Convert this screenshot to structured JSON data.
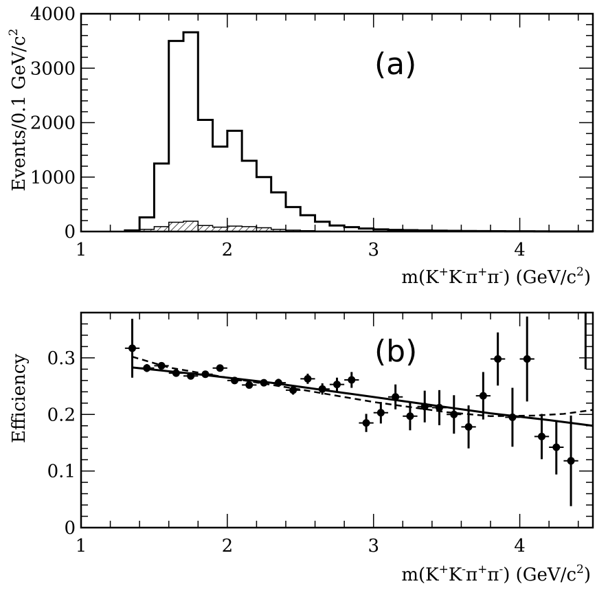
{
  "chart_data": [
    {
      "type": "bar",
      "subtype": "step-histogram",
      "panel_label": "(a)",
      "xlabel_parts": [
        "m(K",
        "+",
        "K",
        "-",
        "π",
        "+",
        "π",
        "-",
        ") (GeV/c",
        "2",
        ")"
      ],
      "ylabel_parts": [
        "Events/0.1 GeV/c",
        "2"
      ],
      "xlim": [
        1,
        4.5
      ],
      "ylim": [
        0,
        4000
      ],
      "xticks": [
        "1",
        "2",
        "3",
        "4"
      ],
      "yticks": [
        "0",
        "1000",
        "2000",
        "3000",
        "4000"
      ],
      "grid": false,
      "bin_width": 0.1,
      "series": [
        {
          "style": "solid-step",
          "x_left": [
            1.3,
            1.4,
            1.5,
            1.6,
            1.7,
            1.8,
            1.9,
            2.0,
            2.1,
            2.2,
            2.3,
            2.4,
            2.5,
            2.6,
            2.7,
            2.8,
            2.9,
            3.0,
            3.1,
            3.2,
            3.3,
            3.4,
            3.5,
            3.6,
            3.7,
            3.8,
            3.9,
            4.0,
            4.1,
            4.2,
            4.3,
            4.4
          ],
          "values": [
            20,
            260,
            1250,
            3500,
            3660,
            2050,
            1560,
            1850,
            1300,
            1000,
            720,
            450,
            300,
            180,
            110,
            80,
            55,
            40,
            30,
            25,
            20,
            15,
            12,
            10,
            8,
            6,
            5,
            4,
            3,
            2,
            2,
            1
          ]
        },
        {
          "style": "hatched",
          "x_left": [
            1.3,
            1.4,
            1.5,
            1.6,
            1.7,
            1.8,
            1.9,
            2.0,
            2.1,
            2.2,
            2.3,
            2.4,
            2.5,
            2.6,
            2.7
          ],
          "values": [
            5,
            40,
            90,
            170,
            190,
            110,
            80,
            100,
            90,
            70,
            40,
            25,
            15,
            8,
            4
          ]
        }
      ]
    },
    {
      "type": "scatter",
      "subtype": "points-with-error-bars",
      "panel_label": "(b)",
      "xlabel_parts": [
        "m(K",
        "+",
        "K",
        "-",
        "π",
        "+",
        "π",
        "-",
        ") (GeV/c",
        "2",
        ")"
      ],
      "ylabel": "Efficiency",
      "xlim": [
        1,
        4.5
      ],
      "ylim": [
        0,
        0.38
      ],
      "xticks": [
        "1",
        "2",
        "3",
        "4"
      ],
      "yticks": [
        "0",
        "0.1",
        "0.2",
        "0.3"
      ],
      "grid": false,
      "points": {
        "x": [
          1.35,
          1.45,
          1.55,
          1.65,
          1.75,
          1.85,
          1.95,
          2.05,
          2.15,
          2.25,
          2.35,
          2.45,
          2.55,
          2.65,
          2.75,
          2.85,
          2.95,
          3.05,
          3.15,
          3.25,
          3.35,
          3.45,
          3.55,
          3.65,
          3.75,
          3.85,
          3.95,
          4.05,
          4.15,
          4.25,
          4.35
        ],
        "y": [
          0.317,
          0.282,
          0.286,
          0.273,
          0.268,
          0.271,
          0.282,
          0.26,
          0.252,
          0.256,
          0.256,
          0.243,
          0.263,
          0.245,
          0.253,
          0.261,
          0.185,
          0.203,
          0.231,
          0.197,
          0.214,
          0.212,
          0.2,
          0.178,
          0.233,
          0.298,
          0.195,
          0.298,
          0.161,
          0.142,
          0.118
        ],
        "yerr": [
          0.052,
          0.007,
          0.005,
          0.004,
          0.004,
          0.004,
          0.005,
          0.005,
          0.006,
          0.006,
          0.007,
          0.008,
          0.009,
          0.01,
          0.012,
          0.014,
          0.016,
          0.019,
          0.022,
          0.025,
          0.028,
          0.031,
          0.034,
          0.038,
          0.042,
          0.047,
          0.052,
          0.075,
          0.04,
          0.048,
          0.08
        ]
      },
      "solid_curve": {
        "x": [
          1.35,
          1.8,
          2.3,
          2.8,
          3.3,
          3.8,
          4.2,
          4.5
        ],
        "y": [
          0.283,
          0.271,
          0.256,
          0.238,
          0.22,
          0.202,
          0.19,
          0.18
        ]
      },
      "dashed_curve": {
        "x": [
          1.35,
          1.6,
          2.0,
          2.5,
          3.0,
          3.5,
          3.8,
          4.1,
          4.3,
          4.5
        ],
        "y": [
          0.302,
          0.283,
          0.265,
          0.244,
          0.222,
          0.204,
          0.197,
          0.198,
          0.201,
          0.208
        ]
      },
      "edge_bar": {
        "x": 4.45,
        "y_low": 0.28,
        "y_high": 0.38
      }
    }
  ]
}
